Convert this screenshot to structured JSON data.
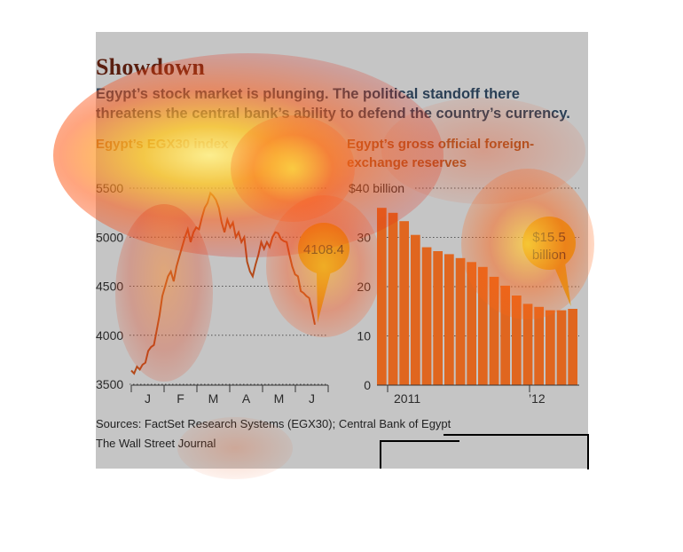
{
  "header": {
    "title": "Showdown",
    "subtitle": "Egypt’s stock market is plunging. The political standoff there threatens the central bank’s ability to defend the country’s currency."
  },
  "footer": {
    "source": "Sources: FactSet Research Systems (EGX30); Central Bank of Egypt",
    "credit": "The Wall Street Journal"
  },
  "colors": {
    "panel": "#c5c5c5",
    "line": "#b44a1a",
    "bar": "#e0661f",
    "bubble": "#d9a21f",
    "title": "#5a1f10",
    "subtitle": "#2a3f55",
    "chart_title": "#a1501f"
  },
  "chart_data": [
    {
      "type": "line",
      "title": "Egypt’s EGX30 index",
      "ylim": [
        3500,
        5500
      ],
      "yticks": [
        3500,
        4000,
        4500,
        5000,
        5500
      ],
      "ytick_labels": [
        "3500",
        "4000",
        "4500",
        "5000",
        "5500"
      ],
      "xtick_labels": [
        "J",
        "F",
        "M",
        "A",
        "M",
        "J"
      ],
      "grid": true,
      "annotation": "4108.4",
      "series": [
        {
          "values": [
            3640,
            3610,
            3680,
            3650,
            3700,
            3720,
            3840,
            3880,
            3900,
            4050,
            4200,
            4400,
            4500,
            4600,
            4650,
            4550,
            4700,
            4800,
            4900,
            5000,
            5080,
            4950,
            5050,
            5100,
            5080,
            5200,
            5300,
            5350,
            5450,
            5420,
            5380,
            5300,
            5150,
            5050,
            5180,
            5100,
            5150,
            5000,
            5050,
            4950,
            5000,
            4750,
            4650,
            4600,
            4720,
            4820,
            4950,
            4880,
            4950,
            4900,
            5000,
            5050,
            5040,
            4980,
            4960,
            4950,
            4820,
            4700,
            4620,
            4600,
            4450,
            4430,
            4400,
            4380,
            4250,
            4108.4
          ]
        }
      ]
    },
    {
      "type": "bar",
      "title": "Egypt’s gross official foreign-exchange reserves",
      "ylim": [
        0,
        40
      ],
      "yticks": [
        0,
        10,
        20,
        30,
        40
      ],
      "ytick_labels": [
        "0",
        "10",
        "20",
        "30",
        "$40 billion"
      ],
      "xtick_labels": [
        "2011",
        "’12"
      ],
      "grid": true,
      "annotation": [
        "$15.5",
        "billion"
      ],
      "values": [
        36.0,
        35.0,
        33.3,
        30.5,
        28.0,
        27.2,
        26.6,
        25.8,
        25.0,
        24.0,
        22.0,
        20.2,
        18.2,
        16.5,
        15.9,
        15.2,
        15.2,
        15.5
      ]
    }
  ]
}
